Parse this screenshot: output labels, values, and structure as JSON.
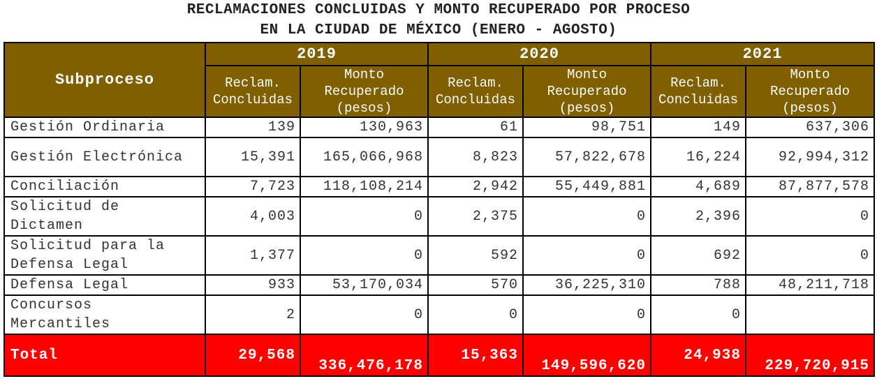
{
  "title": {
    "line1": "RECLAMACIONES CONCLUIDAS Y MONTO RECUPERADO POR PROCESO",
    "line2": "EN LA CIUDAD DE MÉXICO (ENERO - AGOSTO)"
  },
  "header": {
    "subproceso": "Subproceso",
    "years": [
      "2019",
      "2020",
      "2021"
    ],
    "col_reclam": "Reclam. Concluidas",
    "col_monto": "Monto Recuperado (pesos)"
  },
  "rows": [
    {
      "name": "Gestión Ordinaria",
      "v": [
        "139",
        "130,963",
        "61",
        "98,751",
        "149",
        "637,306"
      ]
    },
    {
      "name": "Gestión Electrónica",
      "v": [
        "15,391",
        "165,066,968",
        "8,823",
        "57,822,678",
        "16,224",
        "92,994,312"
      ]
    },
    {
      "name": "Conciliación",
      "v": [
        "7,723",
        "118,108,214",
        "2,942",
        "55,449,881",
        "4,689",
        "87,877,578"
      ]
    },
    {
      "name": "Solicitud de Dictamen",
      "v": [
        "4,003",
        "0",
        "2,375",
        "0",
        "2,396",
        "0"
      ]
    },
    {
      "name": "Solicitud para la Defensa Legal",
      "v": [
        "1,377",
        "0",
        "592",
        "0",
        "692",
        "0"
      ]
    },
    {
      "name": "Defensa Legal",
      "v": [
        "933",
        "53,170,034",
        "570",
        "36,225,310",
        "788",
        "48,211,718"
      ]
    },
    {
      "name": "Concursos Mercantiles",
      "v": [
        "2",
        "0",
        "0",
        "0",
        "0",
        ""
      ]
    }
  ],
  "total": {
    "name": "Total",
    "v": [
      "29,568",
      "336,476,178",
      "15,363",
      "149,596,620",
      "24,938",
      "229,720,915"
    ]
  }
}
